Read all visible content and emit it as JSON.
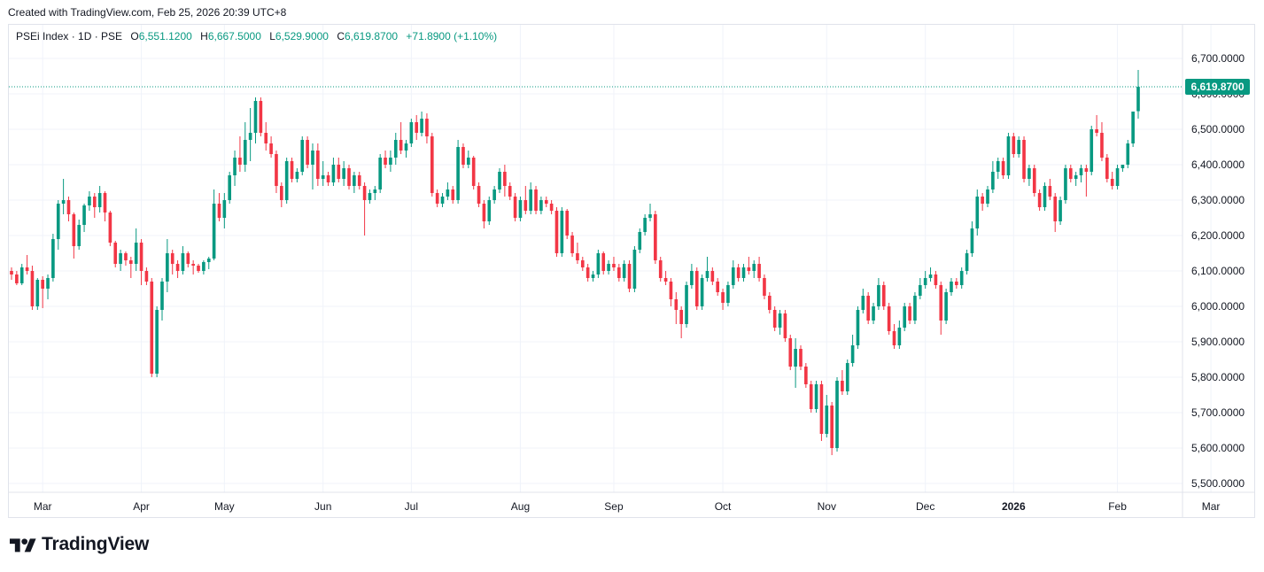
{
  "caption": "Created with TradingView.com, Feb 25, 2026 20:39 UTC+8",
  "legend": {
    "symbol": "PSEi Index · 1D · PSE",
    "open_label": "O",
    "open": "6,551.1200",
    "high_label": "H",
    "high": "6,667.5000",
    "low_label": "L",
    "low": "6,529.9000",
    "close_label": "C",
    "close": "6,619.8700",
    "change": "+71.8900 (+1.10%)"
  },
  "brand": "TradingView",
  "colors": {
    "up": "#089981",
    "down": "#f23645",
    "grid": "#f0f3fa",
    "text": "#131722",
    "price_label_bg": "#089981"
  },
  "chart_data": {
    "type": "candlestick",
    "title": "",
    "xlabel": "",
    "ylabel": "",
    "ylim": [
      5450,
      6775
    ],
    "last_price": 6619.87,
    "last_price_label": "6,619.8700",
    "y_ticks": [
      5500,
      5600,
      5700,
      5800,
      5900,
      6000,
      6100,
      6200,
      6300,
      6400,
      6500,
      6600,
      6700
    ],
    "y_tick_labels": [
      "5,500.0000",
      "5,600.0000",
      "5,700.0000",
      "5,800.0000",
      "5,900.0000",
      "6,000.0000",
      "6,100.0000",
      "6,200.0000",
      "6,300.0000",
      "6,400.0000",
      "6,500.0000",
      "6,600.0000",
      "6,700.0000"
    ],
    "x_ticks": [
      {
        "bar": 6,
        "label": "Mar",
        "bold": false
      },
      {
        "bar": 25,
        "label": "Apr",
        "bold": false
      },
      {
        "bar": 41,
        "label": "May",
        "bold": false
      },
      {
        "bar": 60,
        "label": "Jun",
        "bold": false
      },
      {
        "bar": 77,
        "label": "Jul",
        "bold": false
      },
      {
        "bar": 98,
        "label": "Aug",
        "bold": false
      },
      {
        "bar": 116,
        "label": "Sep",
        "bold": false
      },
      {
        "bar": 137,
        "label": "Oct",
        "bold": false
      },
      {
        "bar": 157,
        "label": "Nov",
        "bold": false
      },
      {
        "bar": 176,
        "label": "Dec",
        "bold": false
      },
      {
        "bar": 193,
        "label": "2026",
        "bold": true
      },
      {
        "bar": 213,
        "label": "Feb",
        "bold": false
      },
      {
        "bar": 231,
        "label": "Mar",
        "bold": false
      }
    ],
    "candles": [
      [
        6100,
        6110,
        6075,
        6090
      ],
      [
        6090,
        6100,
        6060,
        6065
      ],
      [
        6065,
        6120,
        6060,
        6110
      ],
      [
        6110,
        6145,
        6090,
        6100
      ],
      [
        6100,
        6115,
        5990,
        6000
      ],
      [
        6000,
        6080,
        5990,
        6075
      ],
      [
        6075,
        6085,
        5995,
        6050
      ],
      [
        6050,
        6090,
        6020,
        6080
      ],
      [
        6080,
        6205,
        6070,
        6190
      ],
      [
        6190,
        6300,
        6160,
        6290
      ],
      [
        6290,
        6360,
        6260,
        6300
      ],
      [
        6300,
        6310,
        6240,
        6260
      ],
      [
        6260,
        6265,
        6135,
        6170
      ],
      [
        6170,
        6245,
        6160,
        6230
      ],
      [
        6230,
        6290,
        6210,
        6285
      ],
      [
        6285,
        6325,
        6270,
        6310
      ],
      [
        6310,
        6320,
        6250,
        6280
      ],
      [
        6280,
        6340,
        6265,
        6320
      ],
      [
        6320,
        6325,
        6240,
        6265
      ],
      [
        6265,
        6270,
        6170,
        6180
      ],
      [
        6180,
        6185,
        6110,
        6120
      ],
      [
        6120,
        6160,
        6100,
        6150
      ],
      [
        6150,
        6155,
        6115,
        6130
      ],
      [
        6130,
        6140,
        6080,
        6120
      ],
      [
        6120,
        6220,
        6100,
        6180
      ],
      [
        6180,
        6190,
        6060,
        6100
      ],
      [
        6100,
        6110,
        6060,
        6070
      ],
      [
        6070,
        6080,
        5800,
        5810
      ],
      [
        5810,
        6000,
        5800,
        5990
      ],
      [
        5990,
        6080,
        5960,
        6070
      ],
      [
        6070,
        6190,
        6040,
        6150
      ],
      [
        6150,
        6160,
        6090,
        6120
      ],
      [
        6120,
        6130,
        6080,
        6100
      ],
      [
        6100,
        6170,
        6090,
        6150
      ],
      [
        6150,
        6155,
        6110,
        6120
      ],
      [
        6120,
        6130,
        6090,
        6115
      ],
      [
        6115,
        6120,
        6095,
        6100
      ],
      [
        6100,
        6130,
        6090,
        6125
      ],
      [
        6125,
        6140,
        6105,
        6135
      ],
      [
        6135,
        6330,
        6130,
        6290
      ],
      [
        6290,
        6320,
        6240,
        6250
      ],
      [
        6250,
        6320,
        6220,
        6300
      ],
      [
        6300,
        6380,
        6290,
        6370
      ],
      [
        6370,
        6440,
        6340,
        6420
      ],
      [
        6420,
        6480,
        6380,
        6400
      ],
      [
        6400,
        6520,
        6380,
        6470
      ],
      [
        6470,
        6560,
        6410,
        6490
      ],
      [
        6490,
        6590,
        6460,
        6580
      ],
      [
        6580,
        6590,
        6480,
        6490
      ],
      [
        6490,
        6520,
        6440,
        6460
      ],
      [
        6460,
        6480,
        6420,
        6430
      ],
      [
        6430,
        6440,
        6320,
        6340
      ],
      [
        6340,
        6350,
        6280,
        6300
      ],
      [
        6300,
        6420,
        6290,
        6410
      ],
      [
        6410,
        6420,
        6350,
        6360
      ],
      [
        6360,
        6390,
        6350,
        6380
      ],
      [
        6380,
        6480,
        6370,
        6470
      ],
      [
        6470,
        6480,
        6390,
        6400
      ],
      [
        6400,
        6460,
        6330,
        6440
      ],
      [
        6440,
        6460,
        6340,
        6360
      ],
      [
        6360,
        6410,
        6340,
        6370
      ],
      [
        6370,
        6380,
        6340,
        6350
      ],
      [
        6350,
        6420,
        6340,
        6400
      ],
      [
        6400,
        6420,
        6350,
        6360
      ],
      [
        6360,
        6410,
        6340,
        6390
      ],
      [
        6390,
        6400,
        6330,
        6340
      ],
      [
        6340,
        6380,
        6320,
        6370
      ],
      [
        6370,
        6380,
        6330,
        6340
      ],
      [
        6340,
        6350,
        6200,
        6300
      ],
      [
        6300,
        6330,
        6290,
        6320
      ],
      [
        6320,
        6340,
        6300,
        6330
      ],
      [
        6330,
        6430,
        6320,
        6420
      ],
      [
        6420,
        6440,
        6390,
        6400
      ],
      [
        6400,
        6440,
        6380,
        6420
      ],
      [
        6420,
        6490,
        6400,
        6470
      ],
      [
        6470,
        6520,
        6430,
        6440
      ],
      [
        6440,
        6470,
        6420,
        6460
      ],
      [
        6460,
        6530,
        6450,
        6520
      ],
      [
        6520,
        6540,
        6470,
        6490
      ],
      [
        6490,
        6550,
        6480,
        6530
      ],
      [
        6530,
        6545,
        6460,
        6480
      ],
      [
        6480,
        6490,
        6310,
        6320
      ],
      [
        6320,
        6330,
        6280,
        6290
      ],
      [
        6290,
        6320,
        6280,
        6310
      ],
      [
        6310,
        6350,
        6300,
        6330
      ],
      [
        6330,
        6340,
        6290,
        6300
      ],
      [
        6300,
        6470,
        6290,
        6450
      ],
      [
        6450,
        6460,
        6390,
        6400
      ],
      [
        6400,
        6440,
        6390,
        6420
      ],
      [
        6420,
        6425,
        6330,
        6340
      ],
      [
        6340,
        6350,
        6280,
        6290
      ],
      [
        6290,
        6300,
        6220,
        6240
      ],
      [
        6240,
        6310,
        6230,
        6300
      ],
      [
        6300,
        6340,
        6290,
        6330
      ],
      [
        6330,
        6390,
        6320,
        6380
      ],
      [
        6380,
        6400,
        6310,
        6340
      ],
      [
        6340,
        6350,
        6300,
        6310
      ],
      [
        6310,
        6320,
        6240,
        6250
      ],
      [
        6250,
        6310,
        6240,
        6300
      ],
      [
        6300,
        6340,
        6260,
        6270
      ],
      [
        6270,
        6350,
        6260,
        6330
      ],
      [
        6330,
        6340,
        6260,
        6270
      ],
      [
        6270,
        6310,
        6260,
        6300
      ],
      [
        6300,
        6310,
        6280,
        6290
      ],
      [
        6290,
        6300,
        6260,
        6270
      ],
      [
        6270,
        6280,
        6140,
        6150
      ],
      [
        6150,
        6280,
        6140,
        6270
      ],
      [
        6270,
        6275,
        6190,
        6200
      ],
      [
        6200,
        6210,
        6140,
        6150
      ],
      [
        6150,
        6180,
        6120,
        6130
      ],
      [
        6130,
        6140,
        6100,
        6110
      ],
      [
        6110,
        6120,
        6070,
        6080
      ],
      [
        6080,
        6100,
        6070,
        6090
      ],
      [
        6090,
        6160,
        6080,
        6150
      ],
      [
        6150,
        6155,
        6090,
        6100
      ],
      [
        6100,
        6130,
        6090,
        6120
      ],
      [
        6120,
        6140,
        6100,
        6110
      ],
      [
        6110,
        6120,
        6070,
        6080
      ],
      [
        6080,
        6130,
        6070,
        6120
      ],
      [
        6120,
        6130,
        6040,
        6050
      ],
      [
        6050,
        6170,
        6040,
        6160
      ],
      [
        6160,
        6220,
        6150,
        6210
      ],
      [
        6210,
        6260,
        6200,
        6250
      ],
      [
        6250,
        6290,
        6240,
        6260
      ],
      [
        6260,
        6270,
        6120,
        6130
      ],
      [
        6130,
        6140,
        6070,
        6080
      ],
      [
        6080,
        6100,
        6060,
        6070
      ],
      [
        6070,
        6080,
        6000,
        6020
      ],
      [
        6020,
        6040,
        5950,
        5990
      ],
      [
        5990,
        6000,
        5910,
        5950
      ],
      [
        5950,
        6070,
        5940,
        6060
      ],
      [
        6060,
        6120,
        6050,
        6100
      ],
      [
        6100,
        6110,
        5990,
        6000
      ],
      [
        6000,
        6090,
        5990,
        6080
      ],
      [
        6080,
        6140,
        6070,
        6100
      ],
      [
        6100,
        6110,
        6060,
        6070
      ],
      [
        6070,
        6080,
        6030,
        6040
      ],
      [
        6040,
        6050,
        5990,
        6010
      ],
      [
        6010,
        6070,
        6000,
        6060
      ],
      [
        6060,
        6130,
        6050,
        6110
      ],
      [
        6110,
        6120,
        6070,
        6080
      ],
      [
        6080,
        6120,
        6070,
        6110
      ],
      [
        6110,
        6140,
        6090,
        6100
      ],
      [
        6100,
        6130,
        6080,
        6120
      ],
      [
        6120,
        6140,
        6070,
        6080
      ],
      [
        6080,
        6090,
        6020,
        6030
      ],
      [
        6030,
        6040,
        5980,
        5990
      ],
      [
        5990,
        6000,
        5930,
        5940
      ],
      [
        5940,
        5990,
        5920,
        5980
      ],
      [
        5980,
        5990,
        5900,
        5910
      ],
      [
        5910,
        5920,
        5820,
        5830
      ],
      [
        5830,
        5910,
        5770,
        5880
      ],
      [
        5880,
        5890,
        5820,
        5830
      ],
      [
        5830,
        5840,
        5770,
        5780
      ],
      [
        5780,
        5790,
        5700,
        5710
      ],
      [
        5710,
        5790,
        5700,
        5780
      ],
      [
        5780,
        5790,
        5620,
        5640
      ],
      [
        5640,
        5750,
        5630,
        5720
      ],
      [
        5720,
        5730,
        5580,
        5600
      ],
      [
        5600,
        5800,
        5590,
        5790
      ],
      [
        5790,
        5820,
        5750,
        5760
      ],
      [
        5760,
        5850,
        5750,
        5840
      ],
      [
        5840,
        5920,
        5830,
        5890
      ],
      [
        5890,
        6000,
        5880,
        5990
      ],
      [
        5990,
        6050,
        5980,
        6030
      ],
      [
        6030,
        6040,
        5950,
        5960
      ],
      [
        5960,
        6010,
        5950,
        6000
      ],
      [
        6000,
        6080,
        5990,
        6060
      ],
      [
        6060,
        6070,
        5990,
        6000
      ],
      [
        6000,
        6010,
        5920,
        5930
      ],
      [
        5930,
        5950,
        5880,
        5890
      ],
      [
        5890,
        5960,
        5880,
        5940
      ],
      [
        5940,
        6010,
        5930,
        6000
      ],
      [
        6000,
        6010,
        5950,
        5960
      ],
      [
        5960,
        6040,
        5950,
        6030
      ],
      [
        6030,
        6080,
        6020,
        6060
      ],
      [
        6060,
        6100,
        6050,
        6080
      ],
      [
        6080,
        6110,
        6070,
        6090
      ],
      [
        6090,
        6100,
        6050,
        6060
      ],
      [
        6060,
        6070,
        5920,
        5960
      ],
      [
        5960,
        6050,
        5950,
        6040
      ],
      [
        6040,
        6080,
        6030,
        6070
      ],
      [
        6070,
        6080,
        6050,
        6060
      ],
      [
        6060,
        6110,
        6050,
        6100
      ],
      [
        6100,
        6160,
        6090,
        6150
      ],
      [
        6150,
        6240,
        6140,
        6220
      ],
      [
        6220,
        6330,
        6200,
        6310
      ],
      [
        6310,
        6320,
        6270,
        6290
      ],
      [
        6290,
        6340,
        6280,
        6330
      ],
      [
        6330,
        6410,
        6320,
        6380
      ],
      [
        6380,
        6420,
        6360,
        6410
      ],
      [
        6410,
        6420,
        6360,
        6370
      ],
      [
        6370,
        6490,
        6360,
        6480
      ],
      [
        6480,
        6490,
        6420,
        6430
      ],
      [
        6430,
        6480,
        6420,
        6470
      ],
      [
        6470,
        6480,
        6350,
        6360
      ],
      [
        6360,
        6400,
        6340,
        6390
      ],
      [
        6390,
        6400,
        6310,
        6320
      ],
      [
        6320,
        6330,
        6270,
        6280
      ],
      [
        6280,
        6350,
        6270,
        6340
      ],
      [
        6340,
        6360,
        6300,
        6310
      ],
      [
        6310,
        6320,
        6210,
        6240
      ],
      [
        6240,
        6310,
        6230,
        6300
      ],
      [
        6300,
        6400,
        6290,
        6390
      ],
      [
        6390,
        6400,
        6350,
        6360
      ],
      [
        6360,
        6380,
        6340,
        6370
      ],
      [
        6370,
        6400,
        6350,
        6390
      ],
      [
        6390,
        6400,
        6310,
        6380
      ],
      [
        6380,
        6510,
        6370,
        6500
      ],
      [
        6500,
        6540,
        6480,
        6490
      ],
      [
        6490,
        6520,
        6410,
        6420
      ],
      [
        6420,
        6430,
        6350,
        6360
      ],
      [
        6360,
        6380,
        6330,
        6340
      ],
      [
        6340,
        6400,
        6330,
        6390
      ],
      [
        6390,
        6400,
        6380,
        6400
      ],
      [
        6400,
        6470,
        6390,
        6460
      ],
      [
        6460,
        6550,
        6450,
        6550
      ],
      [
        6551.12,
        6667.5,
        6529.9,
        6619.87
      ]
    ]
  }
}
